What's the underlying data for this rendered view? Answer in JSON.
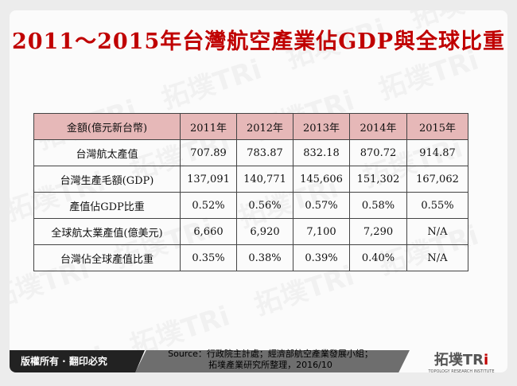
{
  "title": "2011～2015年台灣航空產業佔GDP與全球比重",
  "table": {
    "headers": [
      "金額(億元新台幣)",
      "2011年",
      "2012年",
      "2013年",
      "2014年",
      "2015年"
    ],
    "rows": [
      [
        "台灣航太產值",
        "707.89",
        "783.87",
        "832.18",
        "870.72",
        "914.87"
      ],
      [
        "台灣生產毛額(GDP)",
        "137,091",
        "140,771",
        "145,606",
        "151,302",
        "167,062"
      ],
      [
        "產值佔GDP比重",
        "0.52%",
        "0.56%",
        "0.57%",
        "0.58%",
        "0.55%"
      ],
      [
        "全球航太業產值(億美元)",
        "6,660",
        "6,920",
        "7,100",
        "7,290",
        "N/A"
      ],
      [
        "台灣佔全球產值比重",
        "0.35%",
        "0.38%",
        "0.39%",
        "0.40%",
        "N/A"
      ]
    ]
  },
  "footer": {
    "copyright": "版權所有 · 翻印必究",
    "source_line1": "Source：行政院主計處；經濟部航空產業發展小組；",
    "source_line2": "拓墣產業研究所整理，2016/10",
    "logo_main": "拓墣TR",
    "logo_accent": "i",
    "logo_sub": "TOPOLOGY RESEARCH INSTITUTE"
  },
  "colors": {
    "title": "#c00000",
    "header_bg": "#e6b8b8"
  }
}
